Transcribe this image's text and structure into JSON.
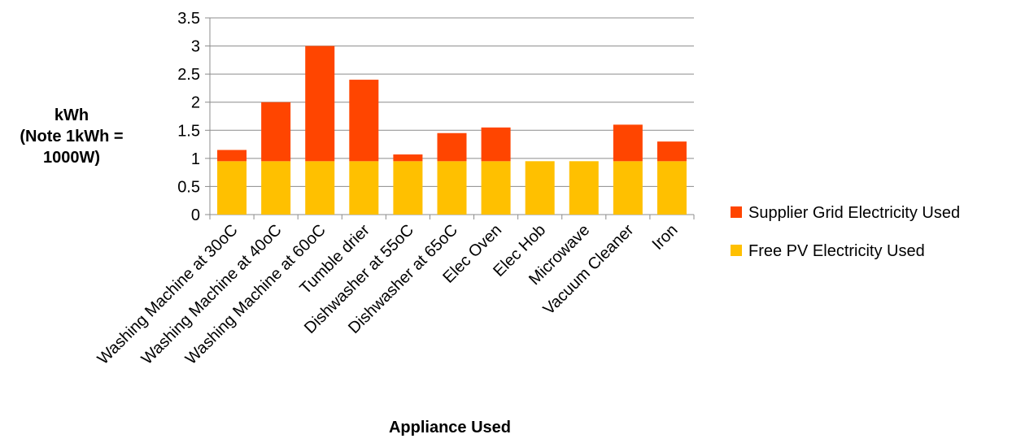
{
  "chart_data": {
    "type": "bar",
    "stacked": true,
    "title": "",
    "ylabel_lines": [
      "kWh",
      "(Note 1kWh =",
      "1000W)"
    ],
    "xlabel": "Appliance Used",
    "ylim": [
      0,
      3.5
    ],
    "yticks": [
      0,
      0.5,
      1,
      1.5,
      2,
      2.5,
      3,
      3.5
    ],
    "ytick_labels": [
      "0",
      "0.5",
      "1",
      "1.5",
      "2",
      "2.5",
      "3",
      "3.5"
    ],
    "grid": true,
    "legend_position": "right",
    "categories": [
      "Washing Machine at 30oC",
      "Washing Machine at 40oC",
      "Washing Machine at 60oC",
      "Tumble drier",
      "Dishwasher at 55oC",
      "Dishwasher at 65oC",
      "Elec Oven",
      "Elec Hob",
      "Microwave",
      "Vacuum Cleaner",
      "Iron"
    ],
    "series": [
      {
        "name": "Free PV Electricity Used",
        "color": "#FFC000",
        "values": [
          0.95,
          0.95,
          0.95,
          0.95,
          0.95,
          0.95,
          0.95,
          0.95,
          0.95,
          0.95,
          0.95
        ]
      },
      {
        "name": "Supplier Grid Electricity Used",
        "color": "#FF4500",
        "values": [
          0.2,
          1.05,
          2.05,
          1.45,
          0.12,
          0.5,
          0.6,
          0,
          0,
          0.65,
          0.35
        ]
      }
    ],
    "legend_order": [
      "Supplier Grid Electricity Used",
      "Free PV Electricity Used"
    ]
  }
}
